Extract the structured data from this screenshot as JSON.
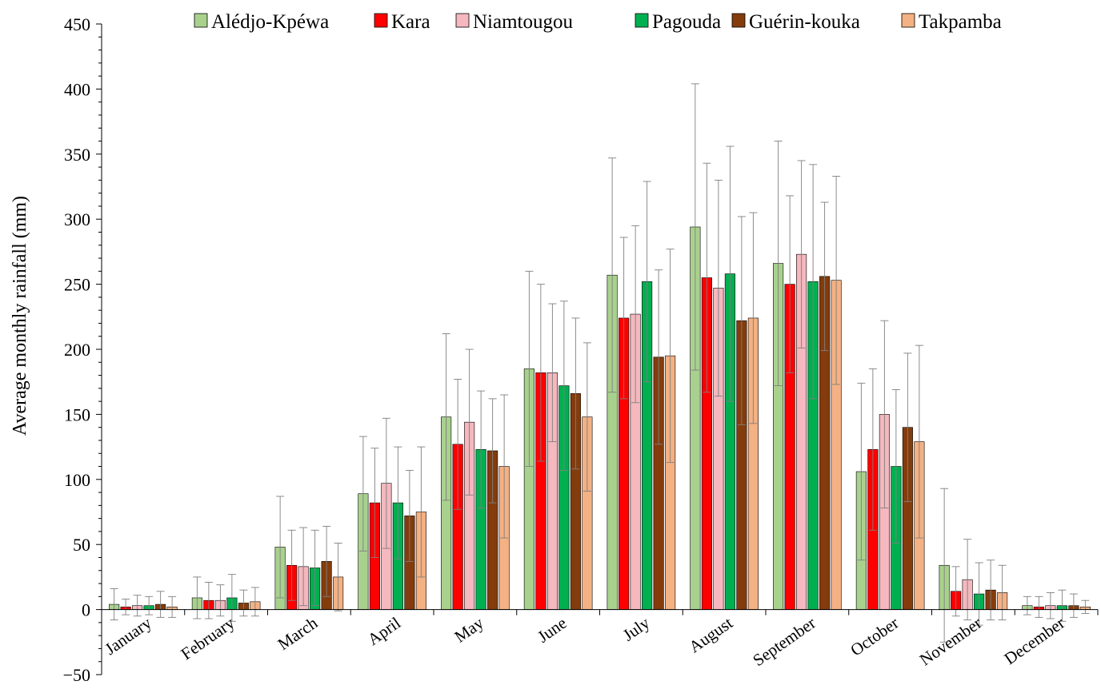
{
  "chart_data": {
    "type": "bar",
    "title": "",
    "xlabel": "",
    "ylabel": "Average monthly rainfall (mm)",
    "ylim": [
      -50,
      450
    ],
    "yticks": [
      -50,
      0,
      50,
      100,
      150,
      200,
      250,
      300,
      350,
      400,
      450
    ],
    "grid": false,
    "legend_position": "top",
    "error_bars": true,
    "categories": [
      "January",
      "February",
      "March",
      "April",
      "May",
      "June",
      "July",
      "August",
      "September",
      "October",
      "November",
      "December"
    ],
    "series": [
      {
        "name": "Alédjo-Kpéwa",
        "color": "#a9d18e",
        "values": [
          4,
          9,
          48,
          89,
          148,
          185,
          257,
          294,
          266,
          106,
          34,
          3
        ],
        "errors": [
          12,
          16,
          39,
          44,
          64,
          75,
          90,
          110,
          94,
          68,
          59,
          7
        ]
      },
      {
        "name": "Kara",
        "color": "#ff0000",
        "values": [
          2,
          7,
          34,
          82,
          127,
          182,
          224,
          255,
          250,
          123,
          14,
          2
        ],
        "errors": [
          6,
          14,
          27,
          42,
          50,
          68,
          62,
          88,
          68,
          62,
          19,
          8
        ]
      },
      {
        "name": "Niamtougou",
        "color": "#f4b8be",
        "values": [
          3,
          7,
          33,
          97,
          144,
          182,
          227,
          247,
          273,
          150,
          23,
          3
        ],
        "errors": [
          8,
          12,
          30,
          50,
          56,
          53,
          68,
          83,
          72,
          72,
          31,
          10
        ]
      },
      {
        "name": "Pagouda",
        "color": "#00b050",
        "values": [
          3,
          9,
          32,
          82,
          123,
          172,
          252,
          258,
          252,
          110,
          12,
          3
        ],
        "errors": [
          7,
          18,
          29,
          43,
          45,
          65,
          77,
          98,
          90,
          59,
          24,
          12
        ]
      },
      {
        "name": "Guérin-kouka",
        "color": "#843c0c",
        "values": [
          4,
          5,
          37,
          72,
          122,
          166,
          194,
          222,
          256,
          140,
          15,
          3
        ],
        "errors": [
          10,
          10,
          27,
          35,
          40,
          58,
          67,
          80,
          57,
          57,
          23,
          9
        ]
      },
      {
        "name": "Takpamba",
        "color": "#f4b183",
        "values": [
          2,
          6,
          25,
          75,
          110,
          148,
          195,
          224,
          253,
          129,
          13,
          2
        ],
        "errors": [
          8,
          11,
          26,
          50,
          55,
          57,
          82,
          81,
          80,
          74,
          21,
          5
        ]
      }
    ]
  }
}
